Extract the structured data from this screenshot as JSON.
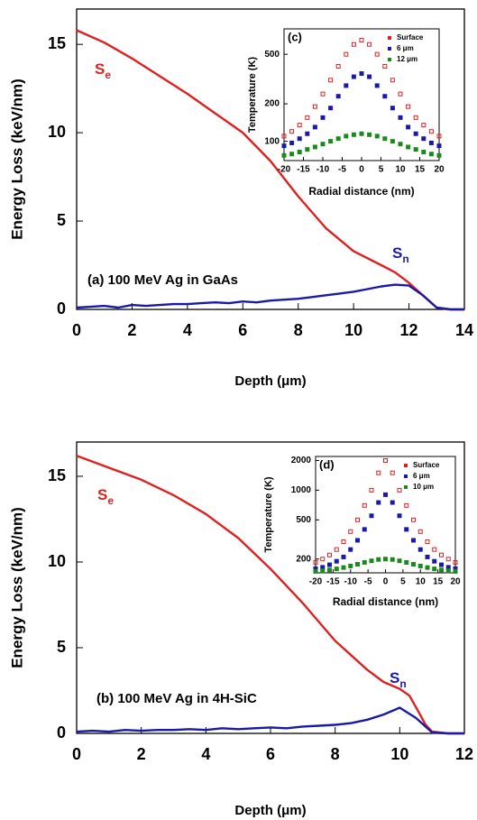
{
  "chart_data": [
    {
      "type": "line",
      "title": "(a) 100 MeV Ag in GaAs",
      "x_label": "Depth (μm)",
      "y_label": "Energy Loss (keV/nm)",
      "xlim": [
        0,
        14
      ],
      "xticks": [
        0,
        2,
        4,
        6,
        8,
        10,
        12,
        14
      ],
      "ylim": [
        0,
        17
      ],
      "yticks": [
        0,
        5,
        10,
        15
      ],
      "series": [
        {
          "name": "S",
          "subscript": "e",
          "color": "#e02020",
          "x": [
            0,
            1,
            2,
            3,
            4,
            5,
            6,
            7,
            8,
            9,
            10,
            11,
            11.5,
            12,
            12.5,
            13,
            13.5,
            14
          ],
          "values": [
            15.8,
            15.1,
            14.2,
            13.2,
            12.2,
            11.1,
            10.0,
            8.4,
            6.4,
            4.6,
            3.3,
            2.5,
            2.1,
            1.5,
            0.8,
            0.1,
            0,
            0
          ]
        },
        {
          "name": "S",
          "subscript": "n",
          "color": "#1a1aa8",
          "x": [
            0,
            0.5,
            1,
            1.5,
            2,
            2.5,
            3,
            3.5,
            4,
            4.5,
            5,
            5.5,
            6,
            6.5,
            7,
            7.5,
            8,
            8.5,
            9,
            9.5,
            10,
            10.5,
            11,
            11.5,
            12,
            12.5,
            13,
            13.5,
            14
          ],
          "values": [
            0.1,
            0.15,
            0.2,
            0.1,
            0.25,
            0.2,
            0.25,
            0.3,
            0.3,
            0.35,
            0.4,
            0.35,
            0.45,
            0.4,
            0.5,
            0.55,
            0.6,
            0.7,
            0.8,
            0.9,
            1.0,
            1.15,
            1.3,
            1.4,
            1.35,
            0.8,
            0.1,
            0,
            0
          ]
        }
      ]
    },
    {
      "type": "scatter",
      "title": "(c)",
      "x_label": "Radial distance (nm)",
      "y_label": "Temperature (K)",
      "log_y": true,
      "xlim": [
        -20,
        20
      ],
      "xticks": [
        -20,
        -15,
        -10,
        -5,
        0,
        5,
        10,
        15,
        20
      ],
      "ylim": [
        70,
        800
      ],
      "yticks": [
        100,
        200,
        500
      ],
      "x": [
        -20,
        -18,
        -16,
        -14,
        -12,
        -10,
        -8,
        -6,
        -4,
        -2,
        0,
        2,
        4,
        6,
        8,
        10,
        12,
        14,
        16,
        18,
        20
      ],
      "series": [
        {
          "name": "Surface",
          "color": "#e02020",
          "values": [
            110,
            120,
            135,
            155,
            190,
            240,
            310,
            400,
            500,
            600,
            650,
            600,
            500,
            400,
            310,
            240,
            190,
            155,
            135,
            120,
            110
          ]
        },
        {
          "name": "6 μm",
          "color": "#1a1aa8",
          "values": [
            92,
            97,
            105,
            115,
            130,
            155,
            185,
            230,
            280,
            330,
            350,
            330,
            280,
            230,
            185,
            155,
            130,
            115,
            105,
            97,
            92
          ]
        },
        {
          "name": "12 μm",
          "color": "#1a8a1a",
          "values": [
            77,
            79,
            82,
            86,
            90,
            95,
            100,
            105,
            110,
            113,
            115,
            113,
            110,
            105,
            100,
            95,
            90,
            86,
            82,
            79,
            77
          ]
        }
      ]
    },
    {
      "type": "line",
      "title": "(b) 100 MeV Ag in 4H-SiC",
      "x_label": "Depth (μm)",
      "y_label": "Energy Loss (keV/nm)",
      "xlim": [
        0,
        12
      ],
      "xticks": [
        0,
        2,
        4,
        6,
        8,
        10,
        12
      ],
      "ylim": [
        0,
        17
      ],
      "yticks": [
        0,
        5,
        10,
        15
      ],
      "series": [
        {
          "name": "S",
          "subscript": "e",
          "color": "#e02020",
          "x": [
            0,
            1,
            2,
            3,
            4,
            5,
            6,
            7,
            8,
            9,
            9.5,
            10,
            10.3,
            10.6,
            10.8,
            11,
            11.5,
            12
          ],
          "values": [
            16.2,
            15.5,
            14.8,
            13.9,
            12.8,
            11.4,
            9.6,
            7.6,
            5.4,
            3.7,
            3.0,
            2.6,
            2.2,
            1.2,
            0.5,
            0.1,
            0,
            0
          ]
        },
        {
          "name": "S",
          "subscript": "n",
          "color": "#1a1aa8",
          "x": [
            0,
            0.5,
            1,
            1.5,
            2,
            2.5,
            3,
            3.5,
            4,
            4.5,
            5,
            5.5,
            6,
            6.5,
            7,
            7.5,
            8,
            8.5,
            9,
            9.5,
            10,
            10.5,
            11,
            11.5,
            12
          ],
          "values": [
            0.1,
            0.15,
            0.1,
            0.2,
            0.15,
            0.2,
            0.2,
            0.25,
            0.2,
            0.3,
            0.25,
            0.3,
            0.35,
            0.3,
            0.4,
            0.45,
            0.5,
            0.6,
            0.8,
            1.1,
            1.5,
            0.9,
            0.05,
            0,
            0
          ]
        }
      ]
    },
    {
      "type": "scatter",
      "title": "(d)",
      "x_label": "Radial distance (nm)",
      "y_label": "Temperature (K)",
      "log_y": true,
      "xlim": [
        -20,
        20
      ],
      "xticks": [
        -20,
        -15,
        -10,
        -5,
        0,
        5,
        10,
        15,
        20
      ],
      "ylim": [
        145,
        2200
      ],
      "yticks": [
        200,
        500,
        1000,
        2000
      ],
      "x": [
        -20,
        -18,
        -16,
        -14,
        -12,
        -10,
        -8,
        -6,
        -4,
        -2,
        0,
        2,
        4,
        6,
        8,
        10,
        12,
        14,
        16,
        18,
        20
      ],
      "series": [
        {
          "name": "Surface",
          "color": "#e02020",
          "values": [
            185,
            200,
            220,
            250,
            300,
            380,
            500,
            700,
            1000,
            1500,
            2000,
            1500,
            1000,
            700,
            500,
            380,
            300,
            250,
            220,
            200,
            185
          ]
        },
        {
          "name": "6 μm",
          "color": "#1a1aa8",
          "values": [
            160,
            165,
            175,
            190,
            210,
            250,
            310,
            400,
            550,
            750,
            900,
            750,
            550,
            400,
            310,
            250,
            210,
            190,
            175,
            165,
            160
          ]
        },
        {
          "name": "10 μm",
          "color": "#1a8a1a",
          "values": [
            150,
            152,
            155,
            159,
            164,
            170,
            177,
            185,
            192,
            198,
            200,
            198,
            192,
            185,
            177,
            170,
            164,
            159,
            155,
            152,
            150
          ]
        }
      ]
    }
  ]
}
